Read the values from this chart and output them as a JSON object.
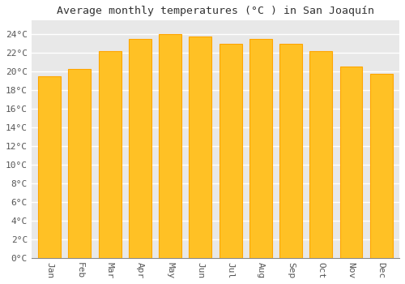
{
  "months": [
    "Jan",
    "Feb",
    "Mar",
    "Apr",
    "May",
    "Jun",
    "Jul",
    "Aug",
    "Sep",
    "Oct",
    "Nov",
    "Dec"
  ],
  "values": [
    19.5,
    20.3,
    22.2,
    23.5,
    24.0,
    23.8,
    23.0,
    23.5,
    23.0,
    22.2,
    20.6,
    19.8
  ],
  "bar_color_face": "#FFC125",
  "bar_color_edge": "#FFA500",
  "title": "Average monthly temperatures (°C ) in San Joaquín",
  "ylabel_ticks": [
    "0°C",
    "2°C",
    "4°C",
    "6°C",
    "8°C",
    "10°C",
    "12°C",
    "14°C",
    "16°C",
    "18°C",
    "20°C",
    "22°C",
    "24°C"
  ],
  "ytick_values": [
    0,
    2,
    4,
    6,
    8,
    10,
    12,
    14,
    16,
    18,
    20,
    22,
    24
  ],
  "ylim": [
    0,
    25.5
  ],
  "background_color": "#ffffff",
  "plot_bg_color": "#e8e8e8",
  "grid_color": "#ffffff",
  "title_fontsize": 9.5,
  "tick_fontsize": 8,
  "bar_width": 0.75
}
